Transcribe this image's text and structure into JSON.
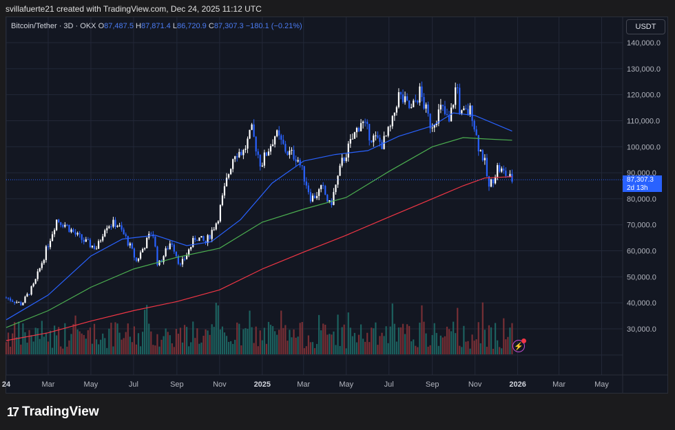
{
  "header": {
    "text": "svillafuerte21 created with TradingView.com, Dec 24, 2025 11:12 UTC"
  },
  "legend": {
    "symbol": "Bitcoin/Tether · 3D · OKX",
    "open_label": "O",
    "open": "87,487.5",
    "high_label": "H",
    "high": "87,871.4",
    "low_label": "L",
    "low": "86,720.9",
    "close_label": "C",
    "close": "87,307.3",
    "change": "−180.1 (−0.21%)"
  },
  "currency_button": "USDT",
  "price_tag": {
    "price": "87,307.3",
    "countdown": "2d 13h"
  },
  "brand": {
    "logo": "17",
    "name": "TradingView"
  },
  "colors": {
    "background": "#131722",
    "up_candle": "#ffffff",
    "down_candle": "#2962ff",
    "ma_blue": "#2962ff",
    "ma_green": "#4caf50",
    "ma_red": "#f23645",
    "volume_up": "#26a69a",
    "volume_down": "#ef5350"
  },
  "chart_data": {
    "type": "candlestick",
    "y_axis": {
      "ticks": [
        30000,
        40000,
        50000,
        60000,
        70000,
        80000,
        90000,
        100000,
        110000,
        120000,
        130000,
        140000
      ],
      "tick_labels": [
        "30,000.0",
        "40,000.0",
        "50,000.0",
        "60,000.0",
        "70,000.0",
        "80,000.0",
        "90,000.0",
        "100,000.0",
        "110,000.0",
        "120,000.0",
        "130,000.0",
        "140,000.0"
      ],
      "range": [
        20000,
        150000
      ]
    },
    "x_axis": {
      "range": [
        "2024-01-01",
        "2026-05-31"
      ],
      "ticks": [
        {
          "date": "2024-01-01",
          "label": "24",
          "bold": true
        },
        {
          "date": "2024-03-01",
          "label": "Mar"
        },
        {
          "date": "2024-05-01",
          "label": "May"
        },
        {
          "date": "2024-07-01",
          "label": "Jul"
        },
        {
          "date": "2024-09-01",
          "label": "Sep"
        },
        {
          "date": "2024-11-01",
          "label": "Nov"
        },
        {
          "date": "2025-01-01",
          "label": "2025",
          "bold": true
        },
        {
          "date": "2025-03-01",
          "label": "Mar"
        },
        {
          "date": "2025-05-01",
          "label": "May"
        },
        {
          "date": "2025-07-01",
          "label": "Jul"
        },
        {
          "date": "2025-09-01",
          "label": "Sep"
        },
        {
          "date": "2025-11-01",
          "label": "Nov"
        },
        {
          "date": "2026-01-01",
          "label": "2026",
          "bold": true
        },
        {
          "date": "2026-03-01",
          "label": "Mar"
        },
        {
          "date": "2026-05-01",
          "label": "May"
        }
      ]
    },
    "price_points": [
      {
        "date": "2024-01-01",
        "close": 42000
      },
      {
        "date": "2024-01-23",
        "close": 39500
      },
      {
        "date": "2024-02-10",
        "close": 47000
      },
      {
        "date": "2024-02-28",
        "close": 61000
      },
      {
        "date": "2024-03-13",
        "close": 72000
      },
      {
        "date": "2024-03-26",
        "close": 70000
      },
      {
        "date": "2024-04-10",
        "close": 66000
      },
      {
        "date": "2024-04-25",
        "close": 63000
      },
      {
        "date": "2024-05-10",
        "close": 61000
      },
      {
        "date": "2024-05-22",
        "close": 70000
      },
      {
        "date": "2024-06-07",
        "close": 70500
      },
      {
        "date": "2024-06-22",
        "close": 64000
      },
      {
        "date": "2024-07-05",
        "close": 56000
      },
      {
        "date": "2024-07-28",
        "close": 68000
      },
      {
        "date": "2024-08-05",
        "close": 54000
      },
      {
        "date": "2024-08-24",
        "close": 64000
      },
      {
        "date": "2024-09-06",
        "close": 54000
      },
      {
        "date": "2024-09-28",
        "close": 65500
      },
      {
        "date": "2024-10-12",
        "close": 63000
      },
      {
        "date": "2024-10-29",
        "close": 72000
      },
      {
        "date": "2024-11-12",
        "close": 88000
      },
      {
        "date": "2024-11-22",
        "close": 98000
      },
      {
        "date": "2024-12-05",
        "close": 98000
      },
      {
        "date": "2024-12-17",
        "close": 106000
      },
      {
        "date": "2024-12-30",
        "close": 93000
      },
      {
        "date": "2025-01-20",
        "close": 105000
      },
      {
        "date": "2025-02-05",
        "close": 98000
      },
      {
        "date": "2025-02-20",
        "close": 96000
      },
      {
        "date": "2025-03-05",
        "close": 86000
      },
      {
        "date": "2025-03-12",
        "close": 80000
      },
      {
        "date": "2025-03-28",
        "close": 84000
      },
      {
        "date": "2025-04-08",
        "close": 77000
      },
      {
        "date": "2025-04-25",
        "close": 94000
      },
      {
        "date": "2025-05-10",
        "close": 103000
      },
      {
        "date": "2025-05-22",
        "close": 110000
      },
      {
        "date": "2025-06-05",
        "close": 104000
      },
      {
        "date": "2025-06-22",
        "close": 101000
      },
      {
        "date": "2025-07-05",
        "close": 108000
      },
      {
        "date": "2025-07-14",
        "close": 120000
      },
      {
        "date": "2025-08-02",
        "close": 114000
      },
      {
        "date": "2025-08-14",
        "close": 121000
      },
      {
        "date": "2025-08-30",
        "close": 108000
      },
      {
        "date": "2025-09-14",
        "close": 115000
      },
      {
        "date": "2025-09-25",
        "close": 109000
      },
      {
        "date": "2025-10-06",
        "close": 125000
      },
      {
        "date": "2025-10-11",
        "close": 112000
      },
      {
        "date": "2025-10-27",
        "close": 114000
      },
      {
        "date": "2025-11-05",
        "close": 101000
      },
      {
        "date": "2025-11-14",
        "close": 95000
      },
      {
        "date": "2025-11-21",
        "close": 84000
      },
      {
        "date": "2025-12-03",
        "close": 92000
      },
      {
        "date": "2025-12-12",
        "close": 90000
      },
      {
        "date": "2025-12-24",
        "close": 87307.3
      }
    ],
    "moving_averages": [
      {
        "color": "#2962ff",
        "points": [
          {
            "date": "2024-01-01",
            "value": 33500
          },
          {
            "date": "2024-03-01",
            "value": 43000
          },
          {
            "date": "2024-05-01",
            "value": 58000
          },
          {
            "date": "2024-06-15",
            "value": 64500
          },
          {
            "date": "2024-08-01",
            "value": 66000
          },
          {
            "date": "2024-09-15",
            "value": 62000
          },
          {
            "date": "2024-10-20",
            "value": 63500
          },
          {
            "date": "2024-12-01",
            "value": 72000
          },
          {
            "date": "2025-01-15",
            "value": 86000
          },
          {
            "date": "2025-03-01",
            "value": 94500
          },
          {
            "date": "2025-04-15",
            "value": 97000
          },
          {
            "date": "2025-06-01",
            "value": 98500
          },
          {
            "date": "2025-07-15",
            "value": 104000
          },
          {
            "date": "2025-09-01",
            "value": 108000
          },
          {
            "date": "2025-10-01",
            "value": 113000
          },
          {
            "date": "2025-11-01",
            "value": 112000
          },
          {
            "date": "2025-12-24",
            "value": 106000
          }
        ]
      },
      {
        "color": "#4caf50",
        "points": [
          {
            "date": "2024-01-01",
            "value": 30500
          },
          {
            "date": "2024-03-01",
            "value": 37000
          },
          {
            "date": "2024-05-01",
            "value": 46000
          },
          {
            "date": "2024-07-01",
            "value": 53000
          },
          {
            "date": "2024-09-01",
            "value": 57500
          },
          {
            "date": "2024-11-01",
            "value": 61000
          },
          {
            "date": "2025-01-01",
            "value": 71000
          },
          {
            "date": "2025-03-01",
            "value": 76000
          },
          {
            "date": "2025-05-01",
            "value": 80500
          },
          {
            "date": "2025-07-01",
            "value": 90500
          },
          {
            "date": "2025-09-01",
            "value": 100000
          },
          {
            "date": "2025-10-15",
            "value": 103500
          },
          {
            "date": "2025-11-15",
            "value": 103000
          },
          {
            "date": "2025-12-24",
            "value": 102500
          }
        ]
      },
      {
        "color": "#f23645",
        "points": [
          {
            "date": "2024-01-01",
            "value": 25500
          },
          {
            "date": "2024-03-01",
            "value": 28500
          },
          {
            "date": "2024-05-01",
            "value": 33000
          },
          {
            "date": "2024-07-01",
            "value": 37000
          },
          {
            "date": "2024-09-01",
            "value": 40500
          },
          {
            "date": "2024-11-01",
            "value": 45000
          },
          {
            "date": "2025-01-01",
            "value": 53000
          },
          {
            "date": "2025-03-01",
            "value": 59500
          },
          {
            "date": "2025-05-01",
            "value": 66000
          },
          {
            "date": "2025-07-01",
            "value": 73000
          },
          {
            "date": "2025-09-01",
            "value": 80000
          },
          {
            "date": "2025-10-15",
            "value": 85000
          },
          {
            "date": "2025-11-15",
            "value": 88000
          },
          {
            "date": "2025-12-24",
            "value": 88500
          }
        ]
      }
    ],
    "last_price_line": 87307.3,
    "volume": {
      "relative_max": 1.0,
      "note_free": true
    },
    "grid": true,
    "legend_position": "top-left"
  }
}
